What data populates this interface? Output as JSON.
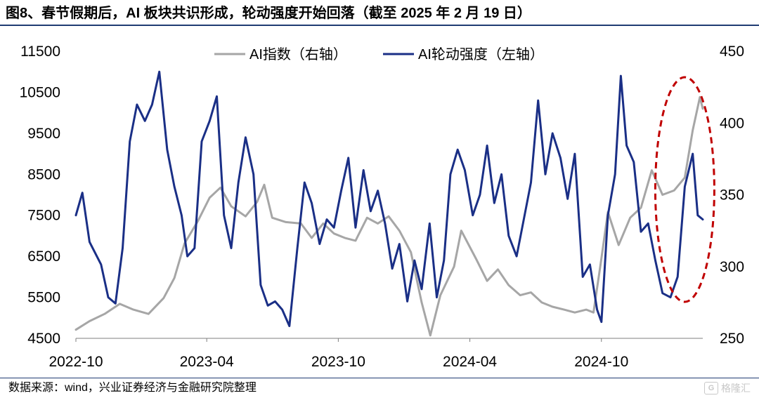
{
  "header": {
    "title": "图8、春节假期后，AI 板块共识形成，轮动强度开始回落（截至 2025 年 2 月 19 日）"
  },
  "footer": {
    "source": "数据来源：wind，兴业证券经济与金融研究院整理",
    "watermark": "格隆汇",
    "watermark_icon": "G"
  },
  "chart_data": {
    "type": "line",
    "title": "",
    "x_tick_labels": [
      "2022-10",
      "2023-04",
      "2023-10",
      "2024-04",
      "2024-10"
    ],
    "x_range": [
      "2022-10",
      "2025-02-19"
    ],
    "y_left": {
      "ticks": [
        4500,
        5500,
        6500,
        7500,
        8500,
        9500,
        10500,
        11500
      ],
      "range": [
        4500,
        11500
      ],
      "tick_labels": [
        "4500",
        "5500",
        "6500",
        "7500",
        "8500",
        "9500",
        "10500",
        "11500"
      ]
    },
    "y_right": {
      "ticks": [
        250,
        300,
        350,
        400,
        450
      ],
      "range": [
        250,
        450
      ],
      "tick_labels": [
        "250",
        "300",
        "350",
        "400",
        "450"
      ]
    },
    "legend": [
      "AI指数（右轴）",
      "AI轮动强度（左轴）"
    ],
    "legend_position": "top",
    "grid": false,
    "annotation": "red dashed ellipse around the latest data (Jan–Feb 2025)",
    "series": [
      {
        "name": "AI指数（右轴）",
        "axis": "right",
        "color": "#a6a6a6",
        "points": [
          [
            "2022-10-01",
            256
          ],
          [
            "2022-10-20",
            262
          ],
          [
            "2022-11-10",
            267
          ],
          [
            "2022-12-01",
            274
          ],
          [
            "2022-12-20",
            270
          ],
          [
            "2023-01-10",
            267
          ],
          [
            "2023-01-31",
            278
          ],
          [
            "2023-02-15",
            292
          ],
          [
            "2023-03-01",
            316
          ],
          [
            "2023-03-20",
            332
          ],
          [
            "2023-04-05",
            348
          ],
          [
            "2023-04-20",
            355
          ],
          [
            "2023-05-05",
            342
          ],
          [
            "2023-05-25",
            335
          ],
          [
            "2023-06-10",
            345
          ],
          [
            "2023-06-20",
            357
          ],
          [
            "2023-07-01",
            334
          ],
          [
            "2023-07-20",
            331
          ],
          [
            "2023-08-10",
            330
          ],
          [
            "2023-08-25",
            320
          ],
          [
            "2023-09-10",
            330
          ],
          [
            "2023-09-25",
            323
          ],
          [
            "2023-10-10",
            320
          ],
          [
            "2023-10-25",
            318
          ],
          [
            "2023-11-10",
            334
          ],
          [
            "2023-11-25",
            330
          ],
          [
            "2023-12-10",
            335
          ],
          [
            "2023-12-25",
            325
          ],
          [
            "2024-01-10",
            310
          ],
          [
            "2024-01-25",
            275
          ],
          [
            "2024-02-06",
            252
          ],
          [
            "2024-02-20",
            280
          ],
          [
            "2024-03-10",
            300
          ],
          [
            "2024-03-20",
            325
          ],
          [
            "2024-04-10",
            305
          ],
          [
            "2024-04-25",
            290
          ],
          [
            "2024-05-10",
            298
          ],
          [
            "2024-05-25",
            287
          ],
          [
            "2024-06-10",
            280
          ],
          [
            "2024-06-25",
            282
          ],
          [
            "2024-07-10",
            275
          ],
          [
            "2024-07-25",
            272
          ],
          [
            "2024-08-10",
            270
          ],
          [
            "2024-08-25",
            268
          ],
          [
            "2024-09-10",
            270
          ],
          [
            "2024-09-20",
            268
          ],
          [
            "2024-09-30",
            302
          ],
          [
            "2024-10-10",
            338
          ],
          [
            "2024-10-25",
            315
          ],
          [
            "2024-11-10",
            334
          ],
          [
            "2024-11-25",
            341
          ],
          [
            "2024-12-10",
            367
          ],
          [
            "2024-12-25",
            350
          ],
          [
            "2025-01-10",
            353
          ],
          [
            "2025-01-25",
            362
          ],
          [
            "2025-02-05",
            395
          ],
          [
            "2025-02-15",
            418
          ],
          [
            "2025-02-19",
            410
          ]
        ]
      },
      {
        "name": "AI轮动强度（左轴）",
        "axis": "left",
        "color": "#1a2f86",
        "points": [
          [
            "2022-10-01",
            7500
          ],
          [
            "2022-10-10",
            8050
          ],
          [
            "2022-10-20",
            6850
          ],
          [
            "2022-11-05",
            6300
          ],
          [
            "2022-11-15",
            5500
          ],
          [
            "2022-11-25",
            5350
          ],
          [
            "2022-12-05",
            6700
          ],
          [
            "2022-12-15",
            9300
          ],
          [
            "2022-12-25",
            10200
          ],
          [
            "2023-01-05",
            9800
          ],
          [
            "2023-01-15",
            10200
          ],
          [
            "2023-01-25",
            11000
          ],
          [
            "2023-02-05",
            9100
          ],
          [
            "2023-02-15",
            8200
          ],
          [
            "2023-02-25",
            7500
          ],
          [
            "2023-03-05",
            6500
          ],
          [
            "2023-03-15",
            6700
          ],
          [
            "2023-03-25",
            9300
          ],
          [
            "2023-04-05",
            9800
          ],
          [
            "2023-04-15",
            10400
          ],
          [
            "2023-04-25",
            7500
          ],
          [
            "2023-05-05",
            6700
          ],
          [
            "2023-05-15",
            8300
          ],
          [
            "2023-05-25",
            9400
          ],
          [
            "2023-06-05",
            8500
          ],
          [
            "2023-06-15",
            5800
          ],
          [
            "2023-06-25",
            5300
          ],
          [
            "2023-07-05",
            5400
          ],
          [
            "2023-07-15",
            5200
          ],
          [
            "2023-07-25",
            4800
          ],
          [
            "2023-08-05",
            6700
          ],
          [
            "2023-08-15",
            8300
          ],
          [
            "2023-08-25",
            7800
          ],
          [
            "2023-09-05",
            6800
          ],
          [
            "2023-09-15",
            7400
          ],
          [
            "2023-09-25",
            7200
          ],
          [
            "2023-10-05",
            8100
          ],
          [
            "2023-10-15",
            8900
          ],
          [
            "2023-10-25",
            7200
          ],
          [
            "2023-11-05",
            8600
          ],
          [
            "2023-11-15",
            7600
          ],
          [
            "2023-11-25",
            8100
          ],
          [
            "2023-12-05",
            7300
          ],
          [
            "2023-12-15",
            6200
          ],
          [
            "2023-12-25",
            6800
          ],
          [
            "2024-01-05",
            5400
          ],
          [
            "2024-01-15",
            6400
          ],
          [
            "2024-01-25",
            5700
          ],
          [
            "2024-02-05",
            7300
          ],
          [
            "2024-02-15",
            5500
          ],
          [
            "2024-02-25",
            6400
          ],
          [
            "2024-03-05",
            8500
          ],
          [
            "2024-03-15",
            9100
          ],
          [
            "2024-03-25",
            8600
          ],
          [
            "2024-04-05",
            7500
          ],
          [
            "2024-04-15",
            8000
          ],
          [
            "2024-04-25",
            9200
          ],
          [
            "2024-05-05",
            7800
          ],
          [
            "2024-05-15",
            8500
          ],
          [
            "2024-05-25",
            7000
          ],
          [
            "2024-06-05",
            6500
          ],
          [
            "2024-06-15",
            7400
          ],
          [
            "2024-06-25",
            8300
          ],
          [
            "2024-07-05",
            10300
          ],
          [
            "2024-07-15",
            8500
          ],
          [
            "2024-07-25",
            9500
          ],
          [
            "2024-08-05",
            8900
          ],
          [
            "2024-08-15",
            7900
          ],
          [
            "2024-08-25",
            9000
          ],
          [
            "2024-09-05",
            6000
          ],
          [
            "2024-09-15",
            6300
          ],
          [
            "2024-09-25",
            5200
          ],
          [
            "2024-10-01",
            4900
          ],
          [
            "2024-10-10",
            7500
          ],
          [
            "2024-10-20",
            8500
          ],
          [
            "2024-10-28",
            10900
          ],
          [
            "2024-11-05",
            9200
          ],
          [
            "2024-11-15",
            8800
          ],
          [
            "2024-11-25",
            7100
          ],
          [
            "2024-12-05",
            7300
          ],
          [
            "2024-12-15",
            6400
          ],
          [
            "2024-12-25",
            5600
          ],
          [
            "2025-01-05",
            5500
          ],
          [
            "2025-01-15",
            6000
          ],
          [
            "2025-01-25",
            8200
          ],
          [
            "2025-02-05",
            9000
          ],
          [
            "2025-02-12",
            7500
          ],
          [
            "2025-02-19",
            7400
          ]
        ]
      }
    ]
  }
}
